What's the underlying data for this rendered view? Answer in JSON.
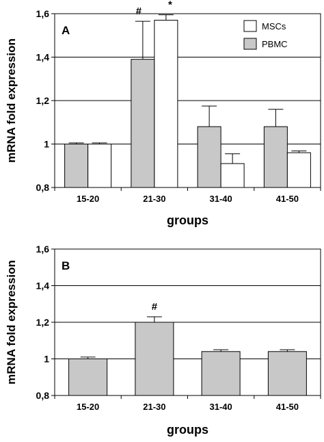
{
  "chart_data": [
    {
      "type": "bar",
      "panel_label": "A",
      "xlabel": "groups",
      "ylabel": "mRNA fold expression",
      "ylim": [
        0.8,
        1.6
      ],
      "yticks": [
        "0,8",
        "1",
        "1,2",
        "1,4",
        "1,6"
      ],
      "grid": true,
      "legend": "top-right",
      "categories": [
        "15-20",
        "21-30",
        "31-40",
        "41-50"
      ],
      "series": [
        {
          "name": "PBMC",
          "color": "#c8c8c8",
          "values": [
            1.0,
            1.39,
            1.08,
            1.08
          ],
          "errors": [
            0.005,
            0.175,
            0.095,
            0.08
          ]
        },
        {
          "name": "MSCs",
          "color": "#ffffff",
          "values": [
            1.0,
            1.57,
            0.91,
            0.96
          ],
          "errors": [
            0.005,
            0.025,
            0.045,
            0.008
          ]
        }
      ],
      "annotations": [
        {
          "category": "21-30",
          "series": "PBMC",
          "text": "#"
        },
        {
          "category": "21-30",
          "series": "MSCs",
          "text": "*"
        }
      ]
    },
    {
      "type": "bar",
      "panel_label": "B",
      "xlabel": "groups",
      "ylabel": "mRNA fold expression",
      "ylim": [
        0.8,
        1.6
      ],
      "yticks": [
        "0,8",
        "1",
        "1,2",
        "1,4",
        "1,6"
      ],
      "grid": true,
      "categories": [
        "15-20",
        "21-30",
        "31-40",
        "41-50"
      ],
      "series": [
        {
          "color": "#c8c8c8",
          "values": [
            1.0,
            1.2,
            1.04,
            1.04
          ],
          "errors": [
            0.01,
            0.03,
            0.01,
            0.01
          ]
        }
      ],
      "annotations": [
        {
          "category": "21-30",
          "series_index": 0,
          "text": "#"
        }
      ]
    }
  ]
}
